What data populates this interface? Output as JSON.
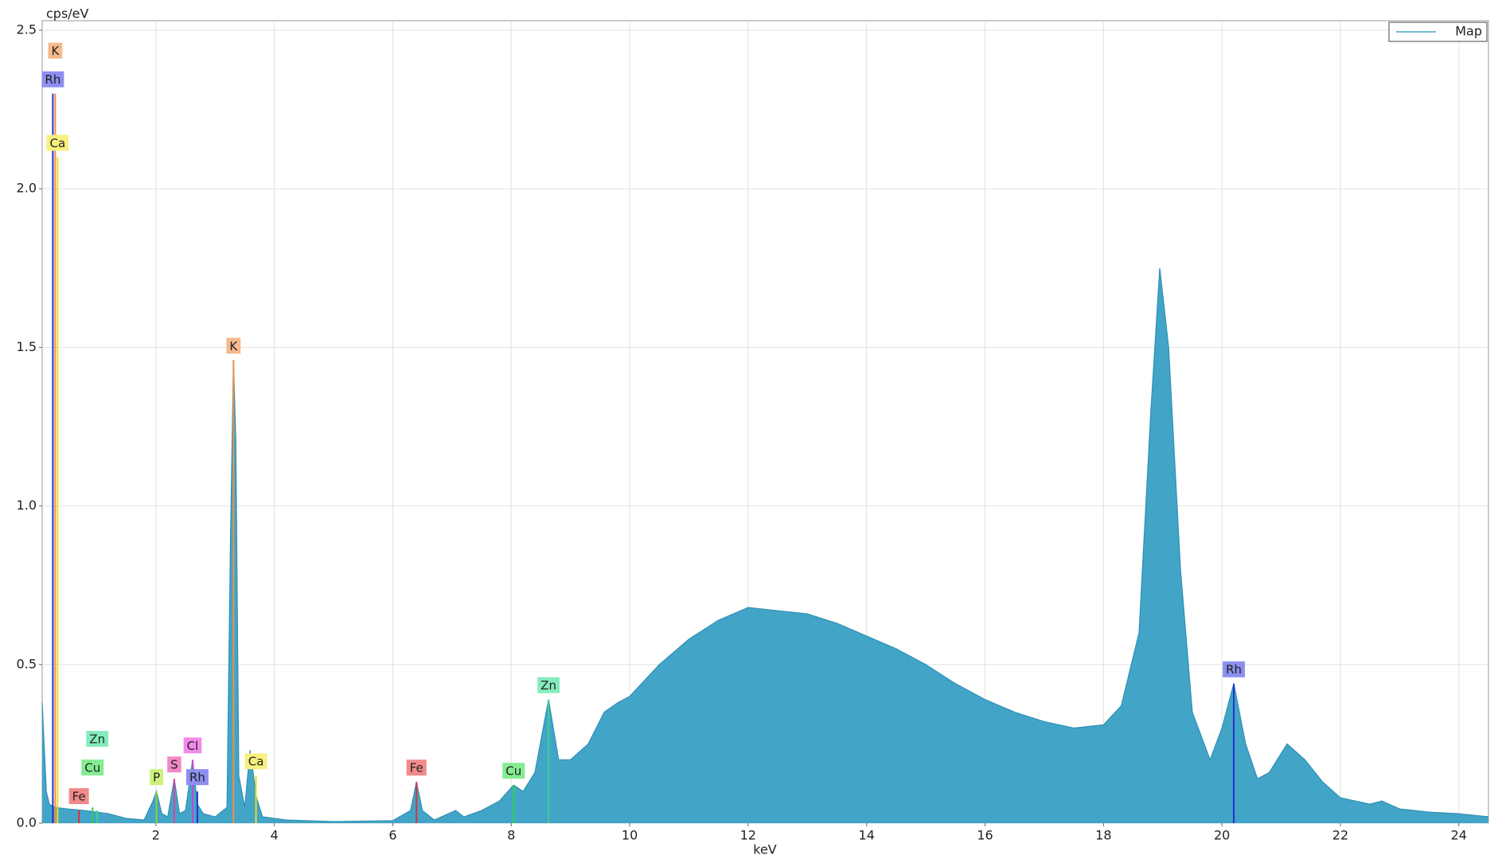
{
  "chart_data": {
    "type": "area",
    "y_label": "cps/eV",
    "x_label": "keV",
    "legend": "top-right",
    "xlim": [
      0.08,
      24.5
    ],
    "ylim": [
      0,
      2.53
    ],
    "xticks": [
      2,
      4,
      6,
      8,
      10,
      12,
      14,
      16,
      18,
      20,
      22,
      24
    ],
    "yticks": [
      {
        "value": 0,
        "label": "0.0"
      },
      0.5,
      {
        "value": 1,
        "label": "1.0"
      },
      1.5,
      {
        "value": 2,
        "label": "2.0"
      },
      2.5
    ],
    "grid": true,
    "series": [
      {
        "name": "Map",
        "color": "#42a5c8",
        "x": [
          0.08,
          0.1,
          0.15,
          0.2,
          0.3,
          0.5,
          0.8,
          1.0,
          1.2,
          1.5,
          1.8,
          1.95,
          2.01,
          2.1,
          2.2,
          2.31,
          2.4,
          2.5,
          2.62,
          2.7,
          2.8,
          3.0,
          3.2,
          3.26,
          3.31,
          3.35,
          3.4,
          3.5,
          3.59,
          3.7,
          3.8,
          4.0,
          4.2,
          5.0,
          6.0,
          6.3,
          6.4,
          6.5,
          6.7,
          7.06,
          7.2,
          7.5,
          7.8,
          8.04,
          8.2,
          8.4,
          8.63,
          8.8,
          9.0,
          9.3,
          9.57,
          9.8,
          10.0,
          10.5,
          11.0,
          11.5,
          12.0,
          12.5,
          13.0,
          13.5,
          14.0,
          14.5,
          15.0,
          15.5,
          16.0,
          16.5,
          17.0,
          17.5,
          18.0,
          18.3,
          18.6,
          18.8,
          18.95,
          19.1,
          19.3,
          19.5,
          19.8,
          20.0,
          20.2,
          20.4,
          20.6,
          20.8,
          21.1,
          21.4,
          21.7,
          22.0,
          22.5,
          22.7,
          23.0,
          23.5,
          24.0,
          24.5
        ],
        "values": [
          0.38,
          0.3,
          0.1,
          0.06,
          0.05,
          0.045,
          0.04,
          0.035,
          0.03,
          0.015,
          0.01,
          0.07,
          0.1,
          0.03,
          0.02,
          0.14,
          0.03,
          0.04,
          0.2,
          0.06,
          0.03,
          0.02,
          0.05,
          0.9,
          1.46,
          1.2,
          0.15,
          0.05,
          0.23,
          0.08,
          0.02,
          0.015,
          0.01,
          0.005,
          0.008,
          0.04,
          0.13,
          0.04,
          0.01,
          0.04,
          0.02,
          0.04,
          0.07,
          0.12,
          0.1,
          0.16,
          0.39,
          0.2,
          0.2,
          0.25,
          0.35,
          0.38,
          0.4,
          0.5,
          0.58,
          0.64,
          0.68,
          0.67,
          0.66,
          0.63,
          0.59,
          0.55,
          0.5,
          0.44,
          0.39,
          0.35,
          0.32,
          0.3,
          0.31,
          0.37,
          0.6,
          1.3,
          1.75,
          1.5,
          0.8,
          0.35,
          0.2,
          0.3,
          0.44,
          0.25,
          0.14,
          0.16,
          0.25,
          0.2,
          0.13,
          0.08,
          0.06,
          0.07,
          0.045,
          0.035,
          0.03,
          0.02
        ]
      }
    ],
    "lines": [
      {
        "label": "Rh",
        "x": 0.26,
        "height": 2.3,
        "color": "#2233cc",
        "label_color": "#8c8ff0"
      },
      {
        "label": "K",
        "x": 0.3,
        "height": 2.3,
        "color": "#f09040",
        "label_color": "#f5b98c"
      },
      {
        "label": "Ca",
        "x": 0.34,
        "height": 2.1,
        "color": "#e8dc20",
        "label_color": "#f7f07c"
      },
      {
        "label": "Fe",
        "x": 0.7,
        "height": 0.04,
        "color": "#e03030",
        "label_color": "#f28a8a"
      },
      {
        "label": "Cu",
        "x": 0.93,
        "height": 0.05,
        "color": "#30d050",
        "label_color": "#86ec92"
      },
      {
        "label": "Zn",
        "x": 1.01,
        "height": 0.04,
        "color": "#40d090",
        "label_color": "#84ecbc"
      },
      {
        "label": "P",
        "x": 2.01,
        "height": 0.1,
        "color": "#90d030",
        "label_color": "#ccf27e"
      },
      {
        "label": "S",
        "x": 2.31,
        "height": 0.14,
        "color": "#e040a0",
        "label_color": "#f288c6"
      },
      {
        "label": "Cl",
        "x": 2.62,
        "height": 0.2,
        "color": "#d040d0",
        "label_color": "#f28aec"
      },
      {
        "label": "Rh",
        "x": 2.7,
        "height": 0.1,
        "color": "#2233cc",
        "label_color": "#8c8ff0"
      },
      {
        "label": "K",
        "x": 3.31,
        "height": 1.46,
        "color": "#f09040",
        "label_color": "#f5b98c"
      },
      {
        "label": "Ca",
        "x": 3.69,
        "height": 0.15,
        "color": "#e8dc20",
        "label_color": "#f7f07c"
      },
      {
        "label": "Fe",
        "x": 6.4,
        "height": 0.13,
        "color": "#e03030",
        "label_color": "#f28a8a"
      },
      {
        "label": "Cu",
        "x": 8.04,
        "height": 0.12,
        "color": "#30d050",
        "label_color": "#86ec92"
      },
      {
        "label": "Zn",
        "x": 8.63,
        "height": 0.39,
        "color": "#40d090",
        "label_color": "#84ecbc"
      },
      {
        "label": "Rh",
        "x": 20.2,
        "height": 0.44,
        "color": "#2233cc",
        "label_color": "#8c8ff0"
      }
    ]
  }
}
